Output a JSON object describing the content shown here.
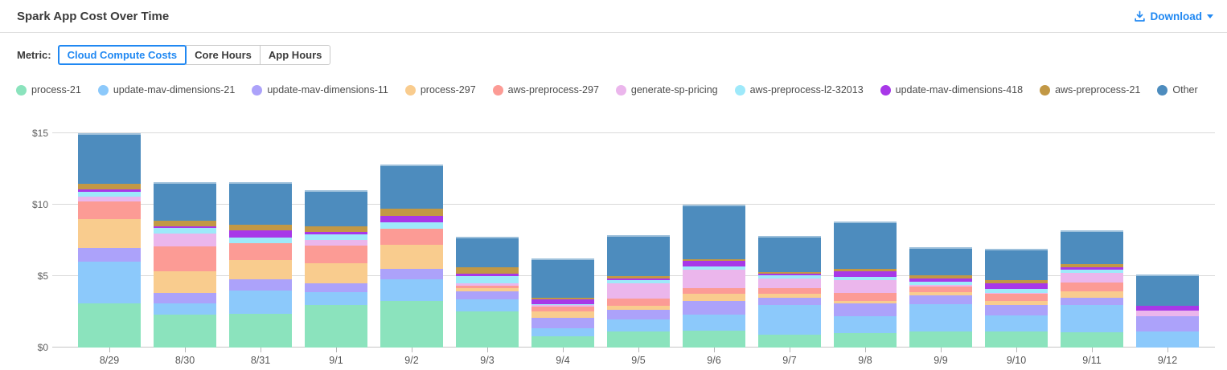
{
  "header": {
    "title": "Spark App Cost Over Time",
    "download_label": "Download"
  },
  "metric": {
    "label": "Metric:",
    "options": [
      {
        "label": "Cloud Compute Costs",
        "selected": true
      },
      {
        "label": "Core Hours",
        "selected": false
      },
      {
        "label": "App Hours",
        "selected": false
      }
    ]
  },
  "colors": {
    "accent_blue": "#2088f2",
    "axis_text": "#5f5f5f",
    "gridline": "#d9d9d9"
  },
  "chart_data": {
    "type": "bar",
    "stacked": true,
    "title": "Spark App Cost Over Time",
    "xlabel": "",
    "ylabel": "",
    "ylim": [
      0,
      15
    ],
    "ytick_values": [
      0,
      5,
      10,
      15
    ],
    "ytick_labels": [
      "$0",
      "$5",
      "$10",
      "$15"
    ],
    "grid": true,
    "legend_position": "top",
    "categories": [
      "8/29",
      "8/30",
      "8/31",
      "9/1",
      "9/2",
      "9/3",
      "9/4",
      "9/5",
      "9/6",
      "9/7",
      "9/8",
      "9/9",
      "9/10",
      "9/11",
      "9/12"
    ],
    "series": [
      {
        "name": "process-21",
        "color": "#8BE3BD",
        "values": [
          3.1,
          2.3,
          2.35,
          3.0,
          3.25,
          2.55,
          0.8,
          1.15,
          1.2,
          0.9,
          1.0,
          1.1,
          1.1,
          1.05,
          0.0
        ]
      },
      {
        "name": "update-mav-dimensions-21",
        "color": "#8CC9FB",
        "values": [
          2.9,
          0.8,
          1.65,
          0.85,
          1.5,
          0.8,
          0.55,
          0.8,
          1.1,
          2.1,
          1.2,
          1.95,
          1.15,
          1.95,
          1.15
        ]
      },
      {
        "name": "update-mav-dimensions-11",
        "color": "#ACA2FA",
        "values": [
          0.95,
          0.7,
          0.75,
          0.65,
          0.75,
          0.6,
          0.75,
          0.7,
          0.95,
          0.5,
          0.9,
          0.6,
          0.75,
          0.5,
          1.05
        ]
      },
      {
        "name": "process-297",
        "color": "#F9CC8E",
        "values": [
          2.05,
          1.55,
          1.35,
          1.4,
          1.7,
          0.2,
          0.45,
          0.25,
          0.5,
          0.25,
          0.15,
          0.25,
          0.25,
          0.45,
          0.0
        ]
      },
      {
        "name": "aws-preprocess-297",
        "color": "#FC9B95",
        "values": [
          1.2,
          1.75,
          1.2,
          1.25,
          1.1,
          0.2,
          0.3,
          0.55,
          0.4,
          0.4,
          0.55,
          0.35,
          0.5,
          0.6,
          0.0
        ]
      },
      {
        "name": "generate-sp-pricing",
        "color": "#EBB6EC",
        "values": [
          0.35,
          0.9,
          0.0,
          0.4,
          0.0,
          0.15,
          0.15,
          1.05,
          1.3,
          0.7,
          0.9,
          0.15,
          0.1,
          0.65,
          0.4
        ]
      },
      {
        "name": "aws-preprocess-l2-32013",
        "color": "#9EE9FA",
        "values": [
          0.35,
          0.35,
          0.4,
          0.4,
          0.45,
          0.5,
          0.05,
          0.2,
          0.2,
          0.2,
          0.25,
          0.2,
          0.25,
          0.25,
          0.0
        ]
      },
      {
        "name": "update-mav-dimensions-418",
        "color": "#A838E8",
        "values": [
          0.15,
          0.15,
          0.5,
          0.15,
          0.45,
          0.15,
          0.3,
          0.15,
          0.4,
          0.1,
          0.4,
          0.25,
          0.4,
          0.2,
          0.35
        ]
      },
      {
        "name": "aws-preprocess-21",
        "color": "#C29845",
        "values": [
          0.4,
          0.4,
          0.4,
          0.4,
          0.55,
          0.5,
          0.15,
          0.15,
          0.15,
          0.15,
          0.15,
          0.2,
          0.2,
          0.2,
          0.0
        ]
      },
      {
        "name": "Other",
        "color": "#4D8CBE",
        "values": [
          3.55,
          2.7,
          3.0,
          2.5,
          3.05,
          2.1,
          2.75,
          2.85,
          3.8,
          2.5,
          3.3,
          2.0,
          2.2,
          2.35,
          2.15
        ]
      }
    ]
  }
}
